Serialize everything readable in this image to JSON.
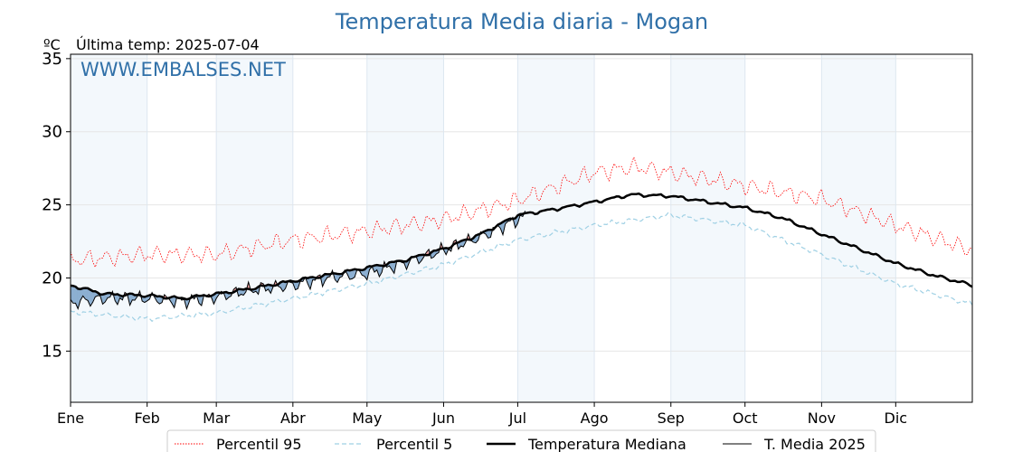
{
  "chart_data": {
    "type": "line",
    "title": "Temperatura Media diaria - Mogan",
    "unit_label": "ºC",
    "last_temp_label": "Última temp: 2025-07-04",
    "watermark": "WWW.EMBALSES.NET",
    "ylim": [
      11.5,
      35.3
    ],
    "yticks": [
      15,
      20,
      25,
      30,
      35
    ],
    "xlim": [
      1,
      366
    ],
    "months": [
      {
        "label": "Ene",
        "day": 1
      },
      {
        "label": "Feb",
        "day": 32
      },
      {
        "label": "Mar",
        "day": 60
      },
      {
        "label": "Abr",
        "day": 91
      },
      {
        "label": "May",
        "day": 121
      },
      {
        "label": "Jun",
        "day": 152
      },
      {
        "label": "Jul",
        "day": 182
      },
      {
        "label": "Ago",
        "day": 213
      },
      {
        "label": "Sep",
        "day": 244
      },
      {
        "label": "Oct",
        "day": 274
      },
      {
        "label": "Nov",
        "day": 305
      },
      {
        "label": "Dic",
        "day": 335
      }
    ],
    "grid": true,
    "legend_position": "bottom",
    "series": [
      {
        "name": "Percentil 95",
        "color": "#ff0000",
        "style": "dotted",
        "anchors_day": [
          1,
          32,
          60,
          91,
          121,
          152,
          182,
          213,
          230,
          244,
          274,
          305,
          335,
          366
        ],
        "anchors_value": [
          21.2,
          21.6,
          21.6,
          22.6,
          23.2,
          24.0,
          25.3,
          27.2,
          27.6,
          27.2,
          26.3,
          25.4,
          23.6,
          21.9
        ]
      },
      {
        "name": "Percentil 5",
        "color": "#9fd0e4",
        "style": "dashed",
        "anchors_day": [
          1,
          32,
          60,
          91,
          121,
          152,
          182,
          213,
          244,
          274,
          305,
          335,
          366
        ],
        "anchors_value": [
          17.7,
          17.2,
          17.6,
          18.6,
          19.6,
          20.9,
          22.6,
          23.6,
          24.3,
          23.6,
          21.6,
          19.6,
          18.2
        ]
      },
      {
        "name": "Temperatura Mediana",
        "color": "#000000",
        "style": "solid-thick",
        "anchors_day": [
          1,
          15,
          32,
          46,
          60,
          75,
          91,
          105,
          121,
          136,
          152,
          167,
          182,
          197,
          213,
          228,
          244,
          259,
          274,
          289,
          305,
          320,
          335,
          350,
          366
        ],
        "anchors_value": [
          19.5,
          18.9,
          18.8,
          18.6,
          18.9,
          19.3,
          19.8,
          20.2,
          20.7,
          21.2,
          22.0,
          23.0,
          24.3,
          24.7,
          25.2,
          25.7,
          25.6,
          25.2,
          24.8,
          24.1,
          23.0,
          22.0,
          21.0,
          20.2,
          19.5
        ]
      },
      {
        "name": "T. Media 2025",
        "color": "#000000",
        "style": "solid-thin",
        "last_day": 185,
        "anchors_day": [
          1,
          15,
          32,
          46,
          60,
          75,
          91,
          105,
          121,
          136,
          152,
          167,
          182,
          185
        ],
        "anchors_value": [
          18.3,
          18.6,
          18.6,
          18.4,
          18.7,
          19.2,
          19.5,
          20.0,
          20.3,
          21.0,
          21.9,
          22.8,
          24.0,
          24.2
        ]
      }
    ]
  }
}
